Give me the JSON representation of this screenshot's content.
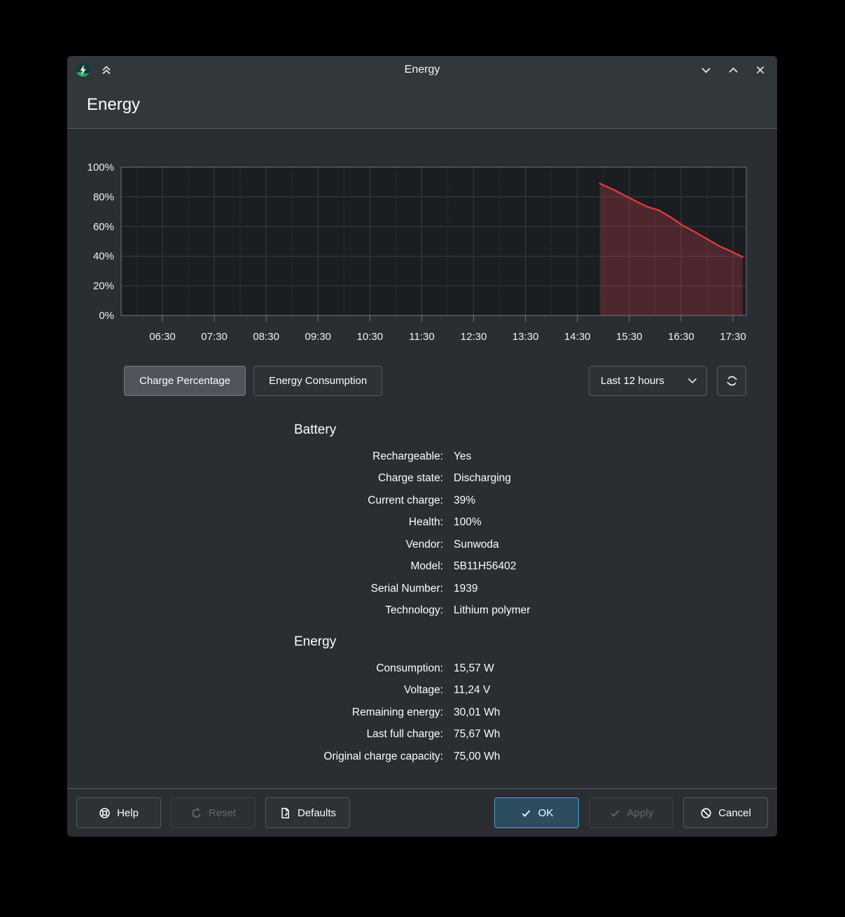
{
  "window": {
    "titlebar": {
      "title": "Energy"
    },
    "page_title": "Energy"
  },
  "chart_data": {
    "type": "area",
    "series": [
      {
        "name": "Charge Percentage",
        "points": [
          [
            "14:56",
            89
          ],
          [
            "15:13",
            84.5
          ],
          [
            "15:31",
            79
          ],
          [
            "15:50",
            73.5
          ],
          [
            "16:04",
            71
          ],
          [
            "16:20",
            65.5
          ],
          [
            "16:31",
            61
          ],
          [
            "16:47",
            56
          ],
          [
            "17:03",
            50.5
          ],
          [
            "17:15",
            46.5
          ],
          [
            "17:25",
            44
          ],
          [
            "17:41",
            39.5
          ]
        ]
      }
    ],
    "x_tick_labels": [
      "06:30",
      "07:30",
      "08:30",
      "09:30",
      "10:30",
      "11:30",
      "12:30",
      "13:30",
      "14:30",
      "15:30",
      "16:30",
      "17:30"
    ],
    "y_tick_labels": [
      "0%",
      "20%",
      "40%",
      "60%",
      "80%",
      "100%"
    ],
    "ylim": [
      0,
      100
    ],
    "x_range_hours": [
      5.704,
      17.756
    ],
    "grid": true,
    "legend": "none",
    "plot_bg": "#1b1e21",
    "grid_solid_color": "#373c42",
    "grid_dashed_color": "#474d53",
    "border_color": "#70757a",
    "line_color": "#e93a3c",
    "fill_color": "rgba(218,68,83,0.27)"
  },
  "controls": {
    "charge_percentage": "Charge Percentage",
    "energy_consumption": "Energy Consumption",
    "timespan": "Last 12 hours"
  },
  "battery": {
    "title": "Battery",
    "rows": [
      {
        "label": "Rechargeable:",
        "value": "Yes"
      },
      {
        "label": "Charge state:",
        "value": "Discharging"
      },
      {
        "label": "Current charge:",
        "value": "39%"
      },
      {
        "label": "Health:",
        "value": "100%"
      },
      {
        "label": "Vendor:",
        "value": "Sunwoda"
      },
      {
        "label": "Model:",
        "value": "5B11H56402"
      },
      {
        "label": "Serial Number:",
        "value": "1939"
      },
      {
        "label": "Technology:",
        "value": "Lithium polymer"
      }
    ]
  },
  "energy": {
    "title": "Energy",
    "rows": [
      {
        "label": "Consumption:",
        "value": "15,57 W"
      },
      {
        "label": "Voltage:",
        "value": "11,24 V"
      },
      {
        "label": "Remaining energy:",
        "value": "30,01 Wh"
      },
      {
        "label": "Last full charge:",
        "value": "75,67 Wh"
      },
      {
        "label": "Original charge capacity:",
        "value": "75,00 Wh"
      }
    ]
  },
  "footer": {
    "help": "Help",
    "reset": "Reset",
    "defaults": "Defaults",
    "ok": "OK",
    "apply": "Apply",
    "cancel": "Cancel"
  },
  "colors": {
    "accent": "#3daee9",
    "titlebar_bg": "#32373c",
    "content_bg": "#2a2e33",
    "chart_line": "#e93a3c"
  }
}
